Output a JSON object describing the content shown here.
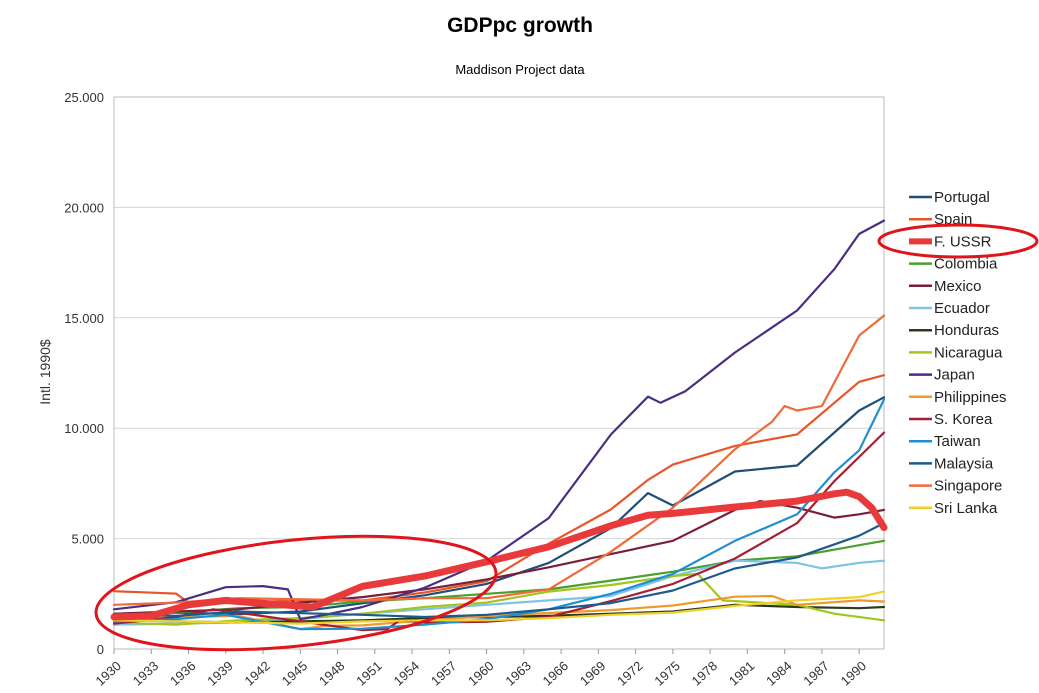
{
  "chart_data": {
    "type": "line",
    "title": "GDPpc growth",
    "subtitle": "Maddison Project data",
    "ylabel": "Intl. 1990$",
    "xlabel": "",
    "xlim": [
      1930,
      1992
    ],
    "ylim": [
      0,
      25000
    ],
    "yticks": [
      0,
      5000,
      10000,
      15000,
      20000,
      25000
    ],
    "ytick_labels": [
      "0",
      "5.000",
      "10.000",
      "15.000",
      "20.000",
      "25.000"
    ],
    "xticks": [
      1930,
      1933,
      1936,
      1939,
      1942,
      1945,
      1948,
      1951,
      1954,
      1957,
      1960,
      1963,
      1966,
      1969,
      1972,
      1975,
      1978,
      1981,
      1984,
      1987,
      1990
    ],
    "xtick_labels": [
      "1930",
      "1933",
      "1936",
      "1939",
      "1942",
      "1945",
      "1948",
      "1951",
      "1954",
      "1957",
      "1960",
      "1963",
      "1966",
      "1969",
      "1972",
      "1975",
      "1978",
      "1981",
      "1984",
      "1987",
      "1990"
    ],
    "grid": true,
    "legend_position": "right",
    "highlight_series": "F. USSR",
    "annotations": [
      "ellipse around F. USSR legend entry",
      "ellipse around 1930-1960 region"
    ],
    "series": [
      {
        "name": "Portugal",
        "color": "#1f4e79",
        "points": [
          [
            1930,
            1580
          ],
          [
            1935,
            1650
          ],
          [
            1940,
            1580
          ],
          [
            1945,
            1700
          ],
          [
            1950,
            2070
          ],
          [
            1955,
            2430
          ],
          [
            1960,
            2950
          ],
          [
            1965,
            3900
          ],
          [
            1970,
            5470
          ],
          [
            1973,
            7060
          ],
          [
            1975,
            6500
          ],
          [
            1980,
            8040
          ],
          [
            1985,
            8310
          ],
          [
            1990,
            10800
          ],
          [
            1992,
            11400
          ]
        ]
      },
      {
        "name": "Spain",
        "color": "#e8562a",
        "points": [
          [
            1930,
            2620
          ],
          [
            1935,
            2510
          ],
          [
            1936,
            2100
          ],
          [
            1939,
            2080
          ],
          [
            1945,
            2200
          ],
          [
            1950,
            2190
          ],
          [
            1955,
            2560
          ],
          [
            1960,
            3070
          ],
          [
            1965,
            4770
          ],
          [
            1970,
            6320
          ],
          [
            1973,
            7660
          ],
          [
            1975,
            8350
          ],
          [
            1980,
            9200
          ],
          [
            1985,
            9720
          ],
          [
            1990,
            12100
          ],
          [
            1992,
            12400
          ]
        ]
      },
      {
        "name": "F. USSR",
        "color": "#e83a3a",
        "width": 7,
        "points": [
          [
            1930,
            1450
          ],
          [
            1933,
            1500
          ],
          [
            1936,
            2000
          ],
          [
            1939,
            2200
          ],
          [
            1940,
            2150
          ],
          [
            1946,
            1900
          ],
          [
            1950,
            2840
          ],
          [
            1955,
            3300
          ],
          [
            1960,
            3950
          ],
          [
            1965,
            4630
          ],
          [
            1970,
            5580
          ],
          [
            1973,
            6060
          ],
          [
            1975,
            6140
          ],
          [
            1980,
            6430
          ],
          [
            1985,
            6700
          ],
          [
            1988,
            7030
          ],
          [
            1989,
            7100
          ],
          [
            1990,
            6900
          ],
          [
            1991,
            6400
          ],
          [
            1992,
            5500
          ]
        ]
      },
      {
        "name": "Colombia",
        "color": "#4aa02c",
        "points": [
          [
            1930,
            1500
          ],
          [
            1935,
            1650
          ],
          [
            1940,
            1850
          ],
          [
            1945,
            1900
          ],
          [
            1950,
            2150
          ],
          [
            1955,
            2300
          ],
          [
            1960,
            2500
          ],
          [
            1965,
            2700
          ],
          [
            1970,
            3100
          ],
          [
            1975,
            3500
          ],
          [
            1980,
            4000
          ],
          [
            1985,
            4200
          ],
          [
            1990,
            4700
          ],
          [
            1992,
            4900
          ]
        ]
      },
      {
        "name": "Mexico",
        "color": "#7a1f3a",
        "points": [
          [
            1930,
            1600
          ],
          [
            1935,
            1700
          ],
          [
            1940,
            1800
          ],
          [
            1945,
            2100
          ],
          [
            1950,
            2350
          ],
          [
            1955,
            2700
          ],
          [
            1960,
            3150
          ],
          [
            1965,
            3700
          ],
          [
            1970,
            4300
          ],
          [
            1975,
            4900
          ],
          [
            1980,
            6300
          ],
          [
            1982,
            6700
          ],
          [
            1985,
            6400
          ],
          [
            1988,
            5950
          ],
          [
            1990,
            6100
          ],
          [
            1992,
            6300
          ]
        ]
      },
      {
        "name": "Ecuador",
        "color": "#7fc3e8",
        "points": [
          [
            1930,
            1100
          ],
          [
            1935,
            1150
          ],
          [
            1940,
            1200
          ],
          [
            1945,
            1350
          ],
          [
            1950,
            1600
          ],
          [
            1955,
            1800
          ],
          [
            1960,
            2000
          ],
          [
            1965,
            2200
          ],
          [
            1970,
            2400
          ],
          [
            1975,
            3300
          ],
          [
            1980,
            4000
          ],
          [
            1985,
            3900
          ],
          [
            1987,
            3650
          ],
          [
            1990,
            3900
          ],
          [
            1992,
            4000
          ]
        ]
      },
      {
        "name": "Honduras",
        "color": "#2b3a1a",
        "points": [
          [
            1930,
            1300
          ],
          [
            1935,
            1250
          ],
          [
            1940,
            1200
          ],
          [
            1945,
            1250
          ],
          [
            1950,
            1300
          ],
          [
            1955,
            1400
          ],
          [
            1960,
            1450
          ],
          [
            1965,
            1500
          ],
          [
            1970,
            1600
          ],
          [
            1975,
            1700
          ],
          [
            1980,
            2000
          ],
          [
            1985,
            1900
          ],
          [
            1990,
            1850
          ],
          [
            1992,
            1900
          ]
        ]
      },
      {
        "name": "Nicaragua",
        "color": "#a3c61e",
        "points": [
          [
            1930,
            1200
          ],
          [
            1935,
            1100
          ],
          [
            1940,
            1300
          ],
          [
            1945,
            1400
          ],
          [
            1950,
            1600
          ],
          [
            1955,
            1900
          ],
          [
            1960,
            2100
          ],
          [
            1965,
            2600
          ],
          [
            1970,
            2900
          ],
          [
            1975,
            3300
          ],
          [
            1977,
            3400
          ],
          [
            1979,
            2200
          ],
          [
            1985,
            2000
          ],
          [
            1988,
            1600
          ],
          [
            1992,
            1300
          ]
        ]
      },
      {
        "name": "Japan",
        "color": "#4b2e83",
        "points": [
          [
            1930,
            1800
          ],
          [
            1935,
            2120
          ],
          [
            1939,
            2800
          ],
          [
            1942,
            2850
          ],
          [
            1944,
            2700
          ],
          [
            1945,
            1350
          ],
          [
            1947,
            1550
          ],
          [
            1950,
            1900
          ],
          [
            1955,
            2770
          ],
          [
            1960,
            3990
          ],
          [
            1965,
            5930
          ],
          [
            1970,
            9710
          ],
          [
            1973,
            11430
          ],
          [
            1974,
            11150
          ],
          [
            1976,
            11670
          ],
          [
            1980,
            13430
          ],
          [
            1985,
            15330
          ],
          [
            1988,
            17200
          ],
          [
            1990,
            18800
          ],
          [
            1992,
            19400
          ]
        ]
      },
      {
        "name": "Philippines",
        "color": "#f0982a",
        "points": [
          [
            1930,
            1400
          ],
          [
            1935,
            1450
          ],
          [
            1940,
            1500
          ],
          [
            1945,
            900
          ],
          [
            1947,
            1050
          ],
          [
            1950,
            1070
          ],
          [
            1955,
            1300
          ],
          [
            1960,
            1480
          ],
          [
            1965,
            1630
          ],
          [
            1970,
            1760
          ],
          [
            1975,
            1970
          ],
          [
            1980,
            2370
          ],
          [
            1983,
            2400
          ],
          [
            1985,
            2000
          ],
          [
            1990,
            2200
          ],
          [
            1992,
            2150
          ]
        ]
      },
      {
        "name": "S. Korea",
        "color": "#a51f34",
        "points": [
          [
            1930,
            1150
          ],
          [
            1935,
            1450
          ],
          [
            1938,
            1800
          ],
          [
            1940,
            1650
          ],
          [
            1950,
            850
          ],
          [
            1952,
            900
          ],
          [
            1953,
            1300
          ],
          [
            1955,
            1200
          ],
          [
            1960,
            1230
          ],
          [
            1965,
            1450
          ],
          [
            1970,
            2170
          ],
          [
            1975,
            2950
          ],
          [
            1980,
            4100
          ],
          [
            1985,
            5700
          ],
          [
            1988,
            7600
          ],
          [
            1990,
            8700
          ],
          [
            1992,
            9800
          ]
        ]
      },
      {
        "name": "Taiwan",
        "color": "#1f8fd2",
        "points": [
          [
            1930,
            1250
          ],
          [
            1935,
            1350
          ],
          [
            1939,
            1550
          ],
          [
            1945,
            900
          ],
          [
            1950,
            920
          ],
          [
            1955,
            1100
          ],
          [
            1960,
            1350
          ],
          [
            1965,
            1800
          ],
          [
            1970,
            2500
          ],
          [
            1975,
            3400
          ],
          [
            1980,
            4900
          ],
          [
            1985,
            6100
          ],
          [
            1988,
            8000
          ],
          [
            1990,
            9000
          ],
          [
            1992,
            11300
          ]
        ]
      },
      {
        "name": "Malaysia",
        "color": "#1f5a8c",
        "points": [
          [
            1930,
            1600
          ],
          [
            1935,
            1500
          ],
          [
            1940,
            1700
          ],
          [
            1950,
            1550
          ],
          [
            1955,
            1450
          ],
          [
            1960,
            1550
          ],
          [
            1965,
            1800
          ],
          [
            1970,
            2080
          ],
          [
            1975,
            2650
          ],
          [
            1980,
            3650
          ],
          [
            1985,
            4150
          ],
          [
            1990,
            5130
          ],
          [
            1992,
            5700
          ]
        ]
      },
      {
        "name": "Singapore",
        "color": "#f06a3a",
        "points": [
          [
            1930,
            2000
          ],
          [
            1935,
            2100
          ],
          [
            1940,
            2300
          ],
          [
            1950,
            2200
          ],
          [
            1955,
            2300
          ],
          [
            1960,
            2300
          ],
          [
            1965,
            2700
          ],
          [
            1970,
            4400
          ],
          [
            1975,
            6400
          ],
          [
            1980,
            9050
          ],
          [
            1983,
            10300
          ],
          [
            1984,
            11000
          ],
          [
            1985,
            10800
          ],
          [
            1987,
            11000
          ],
          [
            1990,
            14200
          ],
          [
            1992,
            15100
          ]
        ]
      },
      {
        "name": "Sri Lanka",
        "color": "#efd12a",
        "points": [
          [
            1930,
            1300
          ],
          [
            1935,
            1250
          ],
          [
            1940,
            1200
          ],
          [
            1945,
            1150
          ],
          [
            1950,
            1250
          ],
          [
            1955,
            1300
          ],
          [
            1960,
            1300
          ],
          [
            1965,
            1400
          ],
          [
            1970,
            1550
          ],
          [
            1975,
            1650
          ],
          [
            1980,
            1950
          ],
          [
            1985,
            2200
          ],
          [
            1990,
            2350
          ],
          [
            1992,
            2600
          ]
        ]
      }
    ]
  }
}
